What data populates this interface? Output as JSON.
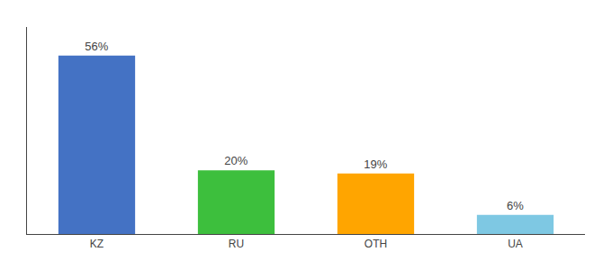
{
  "chart_data": {
    "type": "bar",
    "categories": [
      "KZ",
      "RU",
      "OTH",
      "UA"
    ],
    "values": [
      56,
      20,
      19,
      6
    ],
    "value_labels": [
      "56%",
      "20%",
      "19%",
      "6%"
    ],
    "colors": [
      "#4472C4",
      "#3DBF3D",
      "#FFA500",
      "#7EC8E3"
    ],
    "ylim": [
      0,
      65
    ],
    "data_labels": true,
    "tick_labels": "x",
    "grid": false
  }
}
